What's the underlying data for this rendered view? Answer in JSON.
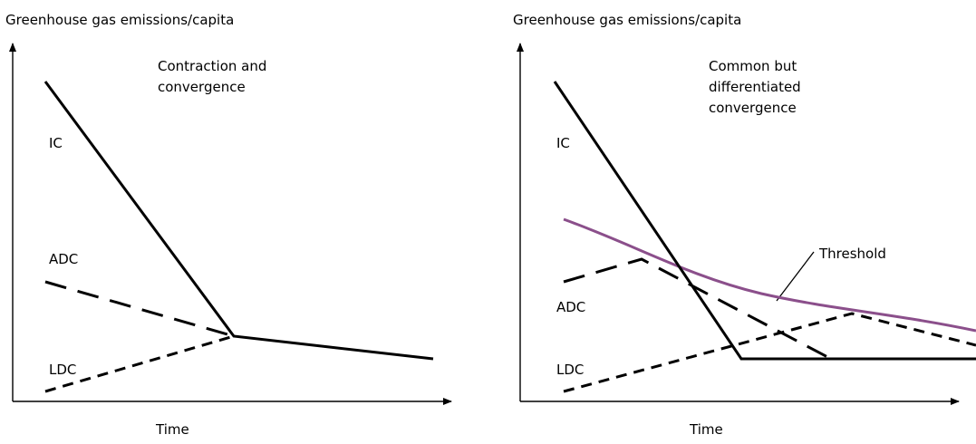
{
  "colors": {
    "line": "#000000",
    "threshold": "#8b4f8b",
    "background": "#ffffff"
  },
  "left_panel": {
    "y_axis_label": "Greenhouse gas emissions/capita",
    "x_axis_label": "Time",
    "title_line1": "Contraction and",
    "title_line2": "convergence",
    "label_ic": "IC",
    "label_adc": "ADC",
    "label_ldc": "LDC"
  },
  "right_panel": {
    "y_axis_label": "Greenhouse gas emissions/capita",
    "x_axis_label": "Time",
    "title_line1": "Common but",
    "title_line2": "differentiated",
    "title_line3": "convergence",
    "label_ic": "IC",
    "label_adc": "ADC",
    "label_ldc": "LDC",
    "label_threshold": "Threshold"
  }
}
